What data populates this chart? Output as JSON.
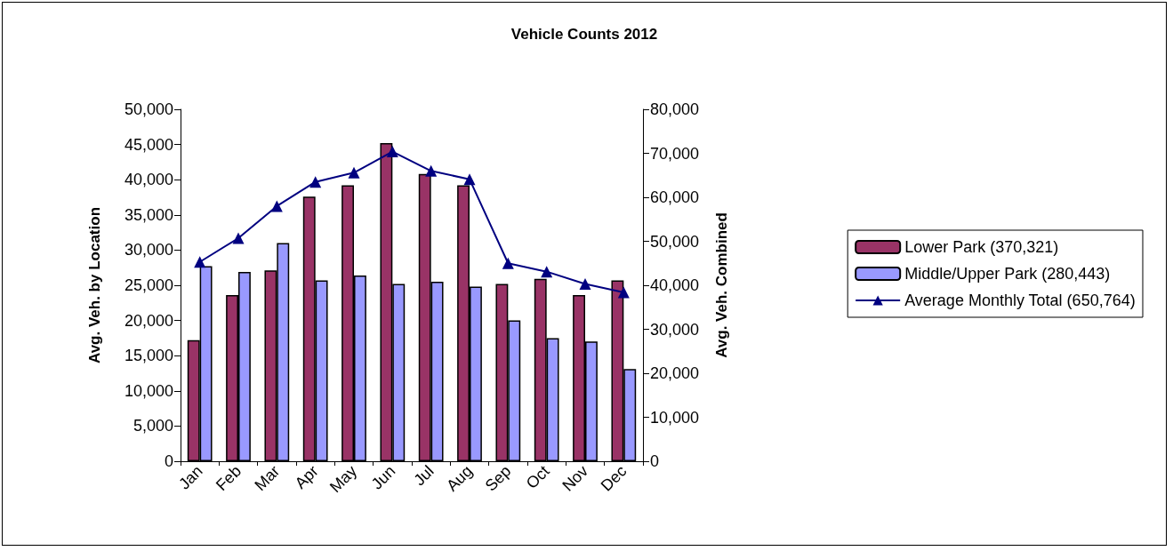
{
  "chart_data": {
    "type": "bar",
    "title": "Vehicle Counts 2012",
    "ylabel": "Avg. Veh. by Location",
    "y2label": "Avg. Veh. Combined",
    "categories": [
      "Jan",
      "Feb",
      "Mar",
      "Apr",
      "May",
      "Jun",
      "Jul",
      "Aug",
      "Sep",
      "Oct",
      "Nov",
      "Dec"
    ],
    "series": [
      {
        "name": "Lower Park (370,321)",
        "color": "#993366",
        "values": [
          17200,
          23600,
          27100,
          37600,
          39200,
          45200,
          40800,
          39200,
          25200,
          25900,
          23600,
          25700
        ]
      },
      {
        "name": "Middle/Upper Park (280,443)",
        "color": "#9999ff",
        "values": [
          27700,
          26900,
          31000,
          25700,
          26400,
          25200,
          25500,
          24800,
          20000,
          17500,
          17000,
          13100
        ]
      },
      {
        "name": "Average Monthly Total (650,764)",
        "type": "line",
        "axis": "y2",
        "color": "#000080",
        "values": [
          45300,
          50700,
          58000,
          63500,
          65600,
          70400,
          66000,
          64100,
          45000,
          43100,
          40300,
          38400
        ]
      }
    ],
    "ylim": [
      0,
      50000
    ],
    "yticks": [
      0,
      {
        "value": 5000,
        "label": "5,000"
      },
      {
        "value": 10000,
        "label": "10,000"
      },
      {
        "value": 15000,
        "label": "15,000"
      },
      {
        "value": 20000,
        "label": "20,000"
      },
      {
        "value": 25000,
        "label": "25,000"
      },
      {
        "value": 30000,
        "label": "30,000"
      },
      {
        "value": 35000,
        "label": "35,000"
      },
      {
        "value": 40000,
        "label": "40,000"
      },
      {
        "value": 45000,
        "label": "45,000"
      },
      {
        "value": 50000,
        "label": "50,000"
      }
    ],
    "y2lim": [
      0,
      80000
    ],
    "y2ticks": [
      0,
      {
        "value": 10000,
        "label": "10,000"
      },
      {
        "value": 20000,
        "label": "20,000"
      },
      {
        "value": 30000,
        "label": "30,000"
      },
      {
        "value": 40000,
        "label": "40,000"
      },
      {
        "value": 50000,
        "label": "50,000"
      },
      {
        "value": 60000,
        "label": "60,000"
      },
      {
        "value": 70000,
        "label": "70,000"
      },
      {
        "value": 80000,
        "label": "80,000"
      }
    ],
    "grid": false,
    "legend": "right",
    "marker": "triangle",
    "line_style": "solid"
  }
}
